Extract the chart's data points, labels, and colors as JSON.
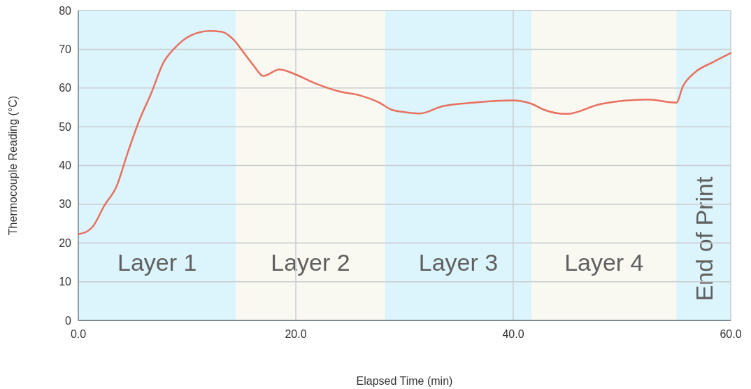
{
  "chart_data": {
    "type": "line",
    "xlabel": "Elapsed Time (min)",
    "ylabel": "Thermocouple Reading (°C)",
    "x": [
      0,
      0.4,
      1.35,
      2.4,
      3.5,
      4.57,
      5.66,
      6.7,
      7.8,
      8.9,
      10.4,
      12.1,
      13.2,
      14.2,
      15.3,
      16.2,
      17,
      18.5,
      19.8,
      21.7,
      23.9,
      26,
      27.7,
      28.8,
      29.9,
      31.4,
      33.5,
      36.3,
      39.9,
      41.7,
      42.8,
      44.9,
      48.1,
      52.4,
      55,
      55.6,
      56.7,
      58.4,
      60
    ],
    "series": [
      {
        "color": "#e8705f",
        "values": [
          22.3,
          22.5,
          24.3,
          29.7,
          34.5,
          43.5,
          52,
          58.6,
          66.4,
          70.4,
          73.6,
          74.7,
          74.5,
          72.7,
          68.8,
          65.5,
          63.1,
          64.8,
          63.7,
          61.3,
          59.2,
          58,
          56.2,
          54.4,
          53.8,
          53.4,
          55.3,
          56.2,
          56.8,
          55.9,
          54.4,
          53.3,
          55.9,
          57,
          56.2,
          60.4,
          64,
          66.7,
          69
        ]
      }
    ],
    "xlim": [
      0,
      60
    ],
    "xticks": [
      {
        "value": 0,
        "label": "0.0"
      },
      {
        "value": 20,
        "label": "20.0"
      },
      {
        "value": 40,
        "label": "40.0"
      },
      {
        "value": 60,
        "label": "60.0"
      }
    ],
    "ylim": [
      0,
      80
    ],
    "yticks": [
      0,
      10,
      20,
      30,
      40,
      50,
      60,
      70,
      80
    ],
    "bands": [
      {
        "axis": "x",
        "from": 0,
        "to": 14.5,
        "label": "Layer 1",
        "color": "#dcf5fd"
      },
      {
        "axis": "x",
        "from": 14.5,
        "to": 28.2,
        "label": "Layer 2",
        "color": "#f9f9f1"
      },
      {
        "axis": "x",
        "from": 28.2,
        "to": 41.7,
        "label": "Layer 3",
        "color": "#dcf5fd"
      },
      {
        "axis": "x",
        "from": 41.7,
        "to": 55,
        "label": "Layer 4",
        "color": "#f9f9f1"
      },
      {
        "axis": "x",
        "from": 55,
        "to": 60,
        "label": "End of Print",
        "color": "#dcf5fd"
      }
    ],
    "grid": true,
    "marker": "none",
    "line_style": "solid"
  }
}
